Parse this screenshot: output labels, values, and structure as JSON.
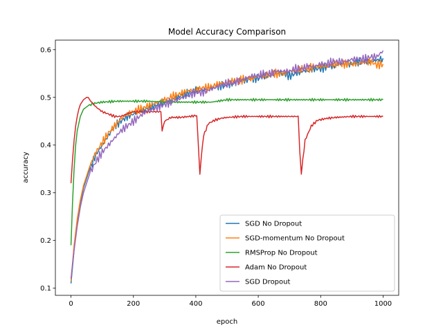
{
  "chart_data": {
    "type": "line",
    "title": "Model Accuracy Comparison",
    "xlabel": "epoch",
    "ylabel": "accuracy",
    "xlim": [
      -50,
      1050
    ],
    "ylim": [
      0.085,
      0.62
    ],
    "xticks": [
      0,
      200,
      400,
      600,
      800,
      1000
    ],
    "yticks": [
      0.1,
      0.2,
      0.3,
      0.4,
      0.5,
      0.6
    ],
    "grid": false,
    "legend_position": "lower-right",
    "series": [
      {
        "name": "SGD No Dropout",
        "color": "#1f77b4",
        "points": [
          [
            0,
            0.11
          ],
          [
            10,
            0.18
          ],
          [
            20,
            0.24
          ],
          [
            30,
            0.28
          ],
          [
            40,
            0.31
          ],
          [
            60,
            0.35
          ],
          [
            80,
            0.38
          ],
          [
            100,
            0.4
          ],
          [
            120,
            0.42
          ],
          [
            140,
            0.44
          ],
          [
            160,
            0.45
          ],
          [
            180,
            0.46
          ],
          [
            200,
            0.465
          ],
          [
            220,
            0.47
          ],
          [
            240,
            0.475
          ],
          [
            260,
            0.48
          ],
          [
            280,
            0.485
          ],
          [
            300,
            0.49
          ],
          [
            320,
            0.495
          ],
          [
            340,
            0.5
          ],
          [
            360,
            0.505
          ],
          [
            380,
            0.51
          ],
          [
            400,
            0.515
          ],
          [
            420,
            0.515
          ],
          [
            440,
            0.52
          ],
          [
            460,
            0.52
          ],
          [
            480,
            0.525
          ],
          [
            500,
            0.525
          ],
          [
            520,
            0.53
          ],
          [
            540,
            0.535
          ],
          [
            560,
            0.535
          ],
          [
            580,
            0.54
          ],
          [
            600,
            0.54
          ],
          [
            620,
            0.545
          ],
          [
            640,
            0.545
          ],
          [
            660,
            0.55
          ],
          [
            680,
            0.55
          ],
          [
            700,
            0.545
          ],
          [
            720,
            0.55
          ],
          [
            740,
            0.555
          ],
          [
            760,
            0.555
          ],
          [
            780,
            0.56
          ],
          [
            800,
            0.56
          ],
          [
            820,
            0.565
          ],
          [
            840,
            0.565
          ],
          [
            860,
            0.57
          ],
          [
            880,
            0.57
          ],
          [
            900,
            0.57
          ],
          [
            920,
            0.575
          ],
          [
            940,
            0.575
          ],
          [
            960,
            0.575
          ],
          [
            980,
            0.578
          ],
          [
            1000,
            0.582
          ]
        ]
      },
      {
        "name": "SGD-momentum No Dropout",
        "color": "#ff7f0e",
        "points": [
          [
            0,
            0.115
          ],
          [
            10,
            0.19
          ],
          [
            20,
            0.245
          ],
          [
            30,
            0.285
          ],
          [
            40,
            0.315
          ],
          [
            60,
            0.355
          ],
          [
            80,
            0.385
          ],
          [
            100,
            0.405
          ],
          [
            120,
            0.425
          ],
          [
            140,
            0.44
          ],
          [
            160,
            0.455
          ],
          [
            180,
            0.465
          ],
          [
            200,
            0.47
          ],
          [
            220,
            0.475
          ],
          [
            240,
            0.48
          ],
          [
            260,
            0.485
          ],
          [
            280,
            0.49
          ],
          [
            300,
            0.495
          ],
          [
            320,
            0.5
          ],
          [
            340,
            0.505
          ],
          [
            360,
            0.51
          ],
          [
            380,
            0.515
          ],
          [
            400,
            0.515
          ],
          [
            420,
            0.52
          ],
          [
            440,
            0.52
          ],
          [
            460,
            0.525
          ],
          [
            480,
            0.53
          ],
          [
            500,
            0.53
          ],
          [
            520,
            0.535
          ],
          [
            540,
            0.535
          ],
          [
            560,
            0.54
          ],
          [
            580,
            0.54
          ],
          [
            600,
            0.545
          ],
          [
            620,
            0.545
          ],
          [
            640,
            0.55
          ],
          [
            660,
            0.55
          ],
          [
            680,
            0.55
          ],
          [
            700,
            0.555
          ],
          [
            720,
            0.555
          ],
          [
            740,
            0.56
          ],
          [
            760,
            0.56
          ],
          [
            780,
            0.565
          ],
          [
            800,
            0.565
          ],
          [
            820,
            0.565
          ],
          [
            840,
            0.57
          ],
          [
            860,
            0.57
          ],
          [
            880,
            0.57
          ],
          [
            900,
            0.57
          ],
          [
            920,
            0.57
          ],
          [
            940,
            0.575
          ],
          [
            960,
            0.575
          ],
          [
            980,
            0.568
          ],
          [
            1000,
            0.57
          ]
        ]
      },
      {
        "name": "RMSProp No Dropout",
        "color": "#2ca02c",
        "points": [
          [
            0,
            0.19
          ],
          [
            5,
            0.28
          ],
          [
            10,
            0.35
          ],
          [
            15,
            0.4
          ],
          [
            20,
            0.43
          ],
          [
            30,
            0.46
          ],
          [
            40,
            0.475
          ],
          [
            50,
            0.48
          ],
          [
            60,
            0.485
          ],
          [
            80,
            0.488
          ],
          [
            100,
            0.49
          ],
          [
            150,
            0.492
          ],
          [
            200,
            0.492
          ],
          [
            250,
            0.492
          ],
          [
            300,
            0.49
          ],
          [
            350,
            0.49
          ],
          [
            400,
            0.49
          ],
          [
            450,
            0.49
          ],
          [
            500,
            0.495
          ],
          [
            550,
            0.495
          ],
          [
            600,
            0.495
          ],
          [
            650,
            0.495
          ],
          [
            700,
            0.495
          ],
          [
            750,
            0.495
          ],
          [
            800,
            0.495
          ],
          [
            850,
            0.495
          ],
          [
            900,
            0.495
          ],
          [
            950,
            0.495
          ],
          [
            1000,
            0.495
          ]
        ]
      },
      {
        "name": "Adam No Dropout",
        "color": "#d62728",
        "points": [
          [
            0,
            0.32
          ],
          [
            5,
            0.37
          ],
          [
            10,
            0.41
          ],
          [
            15,
            0.44
          ],
          [
            20,
            0.46
          ],
          [
            25,
            0.475
          ],
          [
            30,
            0.485
          ],
          [
            40,
            0.495
          ],
          [
            50,
            0.5
          ],
          [
            55,
            0.5
          ],
          [
            60,
            0.495
          ],
          [
            80,
            0.48
          ],
          [
            100,
            0.47
          ],
          [
            120,
            0.465
          ],
          [
            140,
            0.46
          ],
          [
            160,
            0.46
          ],
          [
            180,
            0.465
          ],
          [
            200,
            0.47
          ],
          [
            220,
            0.47
          ],
          [
            240,
            0.47
          ],
          [
            260,
            0.47
          ],
          [
            280,
            0.47
          ],
          [
            288,
            0.47
          ],
          [
            292,
            0.43
          ],
          [
            300,
            0.45
          ],
          [
            320,
            0.458
          ],
          [
            350,
            0.458
          ],
          [
            380,
            0.46
          ],
          [
            403,
            0.462
          ],
          [
            408,
            0.4
          ],
          [
            413,
            0.34
          ],
          [
            418,
            0.38
          ],
          [
            425,
            0.42
          ],
          [
            440,
            0.445
          ],
          [
            460,
            0.452
          ],
          [
            480,
            0.456
          ],
          [
            500,
            0.458
          ],
          [
            550,
            0.46
          ],
          [
            600,
            0.46
          ],
          [
            650,
            0.46
          ],
          [
            700,
            0.46
          ],
          [
            728,
            0.46
          ],
          [
            733,
            0.39
          ],
          [
            738,
            0.34
          ],
          [
            743,
            0.37
          ],
          [
            750,
            0.41
          ],
          [
            770,
            0.44
          ],
          [
            790,
            0.452
          ],
          [
            820,
            0.456
          ],
          [
            850,
            0.458
          ],
          [
            900,
            0.46
          ],
          [
            950,
            0.46
          ],
          [
            1000,
            0.46
          ]
        ]
      },
      {
        "name": "SGD Dropout",
        "color": "#9467bd",
        "points": [
          [
            0,
            0.12
          ],
          [
            10,
            0.18
          ],
          [
            20,
            0.23
          ],
          [
            30,
            0.27
          ],
          [
            40,
            0.3
          ],
          [
            60,
            0.34
          ],
          [
            80,
            0.365
          ],
          [
            100,
            0.385
          ],
          [
            120,
            0.4
          ],
          [
            140,
            0.415
          ],
          [
            160,
            0.43
          ],
          [
            180,
            0.44
          ],
          [
            200,
            0.45
          ],
          [
            220,
            0.46
          ],
          [
            240,
            0.47
          ],
          [
            260,
            0.475
          ],
          [
            280,
            0.48
          ],
          [
            300,
            0.485
          ],
          [
            320,
            0.49
          ],
          [
            340,
            0.495
          ],
          [
            360,
            0.5
          ],
          [
            380,
            0.505
          ],
          [
            400,
            0.51
          ],
          [
            420,
            0.51
          ],
          [
            440,
            0.515
          ],
          [
            460,
            0.52
          ],
          [
            480,
            0.525
          ],
          [
            500,
            0.53
          ],
          [
            520,
            0.53
          ],
          [
            540,
            0.535
          ],
          [
            560,
            0.54
          ],
          [
            580,
            0.545
          ],
          [
            600,
            0.545
          ],
          [
            620,
            0.55
          ],
          [
            640,
            0.55
          ],
          [
            660,
            0.555
          ],
          [
            680,
            0.555
          ],
          [
            700,
            0.555
          ],
          [
            720,
            0.56
          ],
          [
            740,
            0.56
          ],
          [
            760,
            0.565
          ],
          [
            780,
            0.565
          ],
          [
            800,
            0.57
          ],
          [
            820,
            0.57
          ],
          [
            840,
            0.575
          ],
          [
            860,
            0.575
          ],
          [
            880,
            0.575
          ],
          [
            900,
            0.58
          ],
          [
            920,
            0.58
          ],
          [
            940,
            0.58
          ],
          [
            960,
            0.585
          ],
          [
            980,
            0.585
          ],
          [
            1000,
            0.598
          ]
        ]
      }
    ]
  }
}
